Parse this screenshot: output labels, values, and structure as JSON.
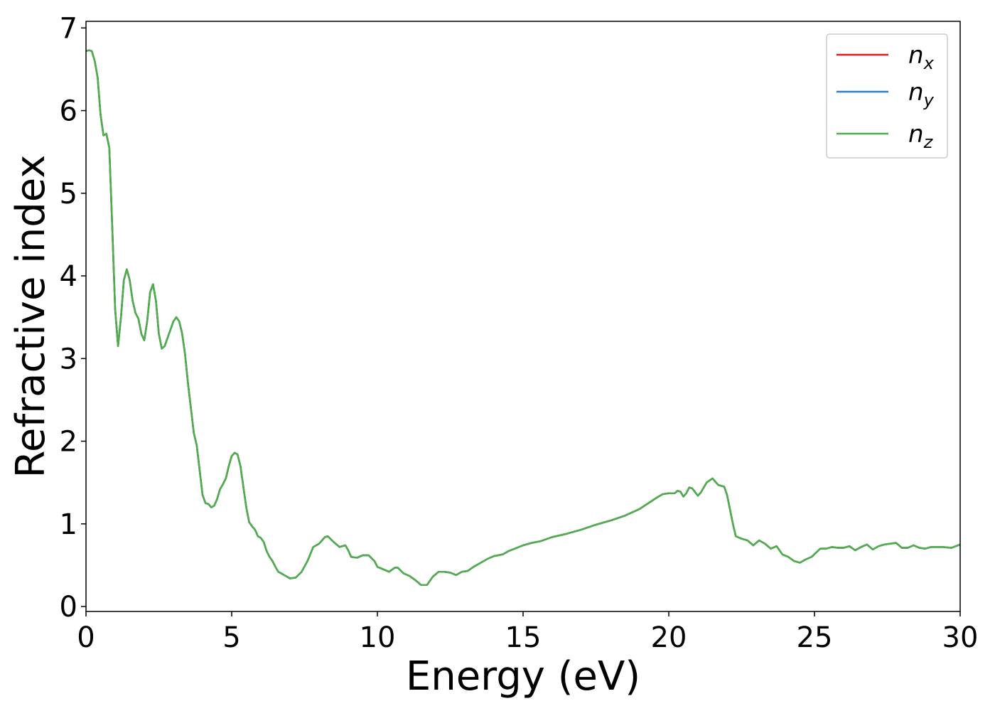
{
  "chart_data": {
    "type": "line",
    "xlabel": "Energy (eV)",
    "ylabel": "Refractive index",
    "x": [
      0,
      0.1,
      0.2,
      0.3,
      0.4,
      0.5,
      0.6,
      0.7,
      0.8,
      0.9,
      1.0,
      1.1,
      1.2,
      1.3,
      1.4,
      1.5,
      1.6,
      1.7,
      1.8,
      1.9,
      2.0,
      2.1,
      2.2,
      2.3,
      2.4,
      2.5,
      2.6,
      2.7,
      2.8,
      2.9,
      3.0,
      3.1,
      3.2,
      3.3,
      3.4,
      3.5,
      3.6,
      3.7,
      3.8,
      3.9,
      4.0,
      4.1,
      4.2,
      4.3,
      4.4,
      4.5,
      4.6,
      4.7,
      4.8,
      4.9,
      5.0,
      5.1,
      5.2,
      5.3,
      5.4,
      5.5,
      5.6,
      5.7,
      5.8,
      5.9,
      6.0,
      6.1,
      6.2,
      6.3,
      6.4,
      6.5,
      6.6,
      6.8,
      7.0,
      7.2,
      7.4,
      7.6,
      7.8,
      8.0,
      8.2,
      8.3,
      8.5,
      8.7,
      8.9,
      9.0,
      9.1,
      9.3,
      9.5,
      9.7,
      9.9,
      10.0,
      10.2,
      10.4,
      10.6,
      10.7,
      10.9,
      11.1,
      11.3,
      11.5,
      11.7,
      11.9,
      12.1,
      12.3,
      12.5,
      12.7,
      12.9,
      13.1,
      13.3,
      13.5,
      13.8,
      14.0,
      14.3,
      14.5,
      15.0,
      15.3,
      15.6,
      16.0,
      16.5,
      17.0,
      17.5,
      18.0,
      18.5,
      19.0,
      19.3,
      19.6,
      19.8,
      20.0,
      20.2,
      20.3,
      20.4,
      20.5,
      20.6,
      20.7,
      20.8,
      21.0,
      21.1,
      21.3,
      21.5,
      21.7,
      21.9,
      22.0,
      22.2,
      22.3,
      22.5,
      22.7,
      22.9,
      23.1,
      23.3,
      23.5,
      23.7,
      23.9,
      24.1,
      24.3,
      24.5,
      24.7,
      24.9,
      25.2,
      25.4,
      25.6,
      25.8,
      26.0,
      26.2,
      26.4,
      26.6,
      26.8,
      27.0,
      27.2,
      27.4,
      27.6,
      27.8,
      28.0,
      28.2,
      28.4,
      28.6,
      28.8,
      29.0,
      29.4,
      29.7,
      30.0
    ],
    "series": [
      {
        "name": "nx",
        "color": "#e41a1c",
        "values": [
          6.72,
          6.73,
          6.72,
          6.6,
          6.4,
          5.95,
          5.7,
          5.72,
          5.55,
          4.6,
          3.6,
          3.15,
          3.5,
          3.95,
          4.08,
          3.95,
          3.7,
          3.55,
          3.48,
          3.3,
          3.22,
          3.45,
          3.8,
          3.9,
          3.7,
          3.3,
          3.12,
          3.15,
          3.25,
          3.35,
          3.45,
          3.5,
          3.45,
          3.3,
          3.05,
          2.7,
          2.4,
          2.1,
          1.95,
          1.65,
          1.35,
          1.25,
          1.24,
          1.2,
          1.22,
          1.3,
          1.42,
          1.48,
          1.55,
          1.7,
          1.82,
          1.86,
          1.84,
          1.7,
          1.45,
          1.2,
          1.02,
          0.97,
          0.93,
          0.85,
          0.83,
          0.78,
          0.67,
          0.6,
          0.55,
          0.48,
          0.42,
          0.38,
          0.34,
          0.35,
          0.42,
          0.55,
          0.72,
          0.76,
          0.84,
          0.85,
          0.78,
          0.72,
          0.74,
          0.68,
          0.6,
          0.59,
          0.62,
          0.62,
          0.55,
          0.48,
          0.45,
          0.42,
          0.47,
          0.47,
          0.4,
          0.37,
          0.32,
          0.26,
          0.26,
          0.36,
          0.42,
          0.42,
          0.41,
          0.38,
          0.42,
          0.43,
          0.48,
          0.52,
          0.58,
          0.61,
          0.63,
          0.67,
          0.74,
          0.77,
          0.79,
          0.84,
          0.88,
          0.93,
          0.99,
          1.04,
          1.1,
          1.18,
          1.25,
          1.32,
          1.36,
          1.37,
          1.37,
          1.4,
          1.39,
          1.33,
          1.37,
          1.44,
          1.43,
          1.34,
          1.38,
          1.5,
          1.55,
          1.47,
          1.45,
          1.35,
          1.0,
          0.85,
          0.82,
          0.8,
          0.74,
          0.8,
          0.76,
          0.7,
          0.73,
          0.63,
          0.6,
          0.55,
          0.53,
          0.57,
          0.6,
          0.7,
          0.7,
          0.72,
          0.71,
          0.71,
          0.73,
          0.68,
          0.72,
          0.75,
          0.69,
          0.73,
          0.75,
          0.76,
          0.77,
          0.71,
          0.71,
          0.74,
          0.71,
          0.7,
          0.72,
          0.72,
          0.71,
          0.75
        ]
      },
      {
        "name": "ny",
        "color": "#377eb8",
        "values": [
          6.72,
          6.73,
          6.72,
          6.6,
          6.4,
          5.95,
          5.7,
          5.72,
          5.55,
          4.6,
          3.6,
          3.15,
          3.5,
          3.95,
          4.08,
          3.95,
          3.7,
          3.55,
          3.48,
          3.3,
          3.22,
          3.45,
          3.8,
          3.9,
          3.7,
          3.3,
          3.12,
          3.15,
          3.25,
          3.35,
          3.45,
          3.5,
          3.45,
          3.3,
          3.05,
          2.7,
          2.4,
          2.1,
          1.95,
          1.65,
          1.35,
          1.25,
          1.24,
          1.2,
          1.22,
          1.3,
          1.42,
          1.48,
          1.55,
          1.7,
          1.82,
          1.86,
          1.84,
          1.7,
          1.45,
          1.2,
          1.02,
          0.97,
          0.93,
          0.85,
          0.83,
          0.78,
          0.67,
          0.6,
          0.55,
          0.48,
          0.42,
          0.38,
          0.34,
          0.35,
          0.42,
          0.55,
          0.72,
          0.76,
          0.84,
          0.85,
          0.78,
          0.72,
          0.74,
          0.68,
          0.6,
          0.59,
          0.62,
          0.62,
          0.55,
          0.48,
          0.45,
          0.42,
          0.47,
          0.47,
          0.4,
          0.37,
          0.32,
          0.26,
          0.26,
          0.36,
          0.42,
          0.42,
          0.41,
          0.38,
          0.42,
          0.43,
          0.48,
          0.52,
          0.58,
          0.61,
          0.63,
          0.67,
          0.74,
          0.77,
          0.79,
          0.84,
          0.88,
          0.93,
          0.99,
          1.04,
          1.1,
          1.18,
          1.25,
          1.32,
          1.36,
          1.37,
          1.37,
          1.4,
          1.39,
          1.33,
          1.37,
          1.44,
          1.43,
          1.34,
          1.38,
          1.5,
          1.55,
          1.47,
          1.45,
          1.35,
          1.0,
          0.85,
          0.82,
          0.8,
          0.74,
          0.8,
          0.76,
          0.7,
          0.73,
          0.63,
          0.6,
          0.55,
          0.53,
          0.57,
          0.6,
          0.7,
          0.7,
          0.72,
          0.71,
          0.71,
          0.73,
          0.68,
          0.72,
          0.75,
          0.69,
          0.73,
          0.75,
          0.76,
          0.77,
          0.71,
          0.71,
          0.74,
          0.71,
          0.7,
          0.72,
          0.72,
          0.71,
          0.75
        ]
      },
      {
        "name": "nz",
        "color": "#4daf4a",
        "values": [
          6.72,
          6.73,
          6.72,
          6.6,
          6.4,
          5.95,
          5.7,
          5.72,
          5.55,
          4.6,
          3.6,
          3.15,
          3.5,
          3.95,
          4.08,
          3.95,
          3.7,
          3.55,
          3.48,
          3.3,
          3.22,
          3.45,
          3.8,
          3.9,
          3.7,
          3.3,
          3.12,
          3.15,
          3.25,
          3.35,
          3.45,
          3.5,
          3.45,
          3.3,
          3.05,
          2.7,
          2.4,
          2.1,
          1.95,
          1.65,
          1.35,
          1.25,
          1.24,
          1.2,
          1.22,
          1.3,
          1.42,
          1.48,
          1.55,
          1.7,
          1.82,
          1.86,
          1.84,
          1.7,
          1.45,
          1.2,
          1.02,
          0.97,
          0.93,
          0.85,
          0.83,
          0.78,
          0.67,
          0.6,
          0.55,
          0.48,
          0.42,
          0.38,
          0.34,
          0.35,
          0.42,
          0.55,
          0.72,
          0.76,
          0.84,
          0.85,
          0.78,
          0.72,
          0.74,
          0.68,
          0.6,
          0.59,
          0.62,
          0.62,
          0.55,
          0.48,
          0.45,
          0.42,
          0.47,
          0.47,
          0.4,
          0.37,
          0.32,
          0.26,
          0.26,
          0.36,
          0.42,
          0.42,
          0.41,
          0.38,
          0.42,
          0.43,
          0.48,
          0.52,
          0.58,
          0.61,
          0.63,
          0.67,
          0.74,
          0.77,
          0.79,
          0.84,
          0.88,
          0.93,
          0.99,
          1.04,
          1.1,
          1.18,
          1.25,
          1.32,
          1.36,
          1.37,
          1.37,
          1.4,
          1.39,
          1.33,
          1.37,
          1.44,
          1.43,
          1.34,
          1.38,
          1.5,
          1.55,
          1.47,
          1.45,
          1.35,
          1.0,
          0.85,
          0.82,
          0.8,
          0.74,
          0.8,
          0.76,
          0.7,
          0.73,
          0.63,
          0.6,
          0.55,
          0.53,
          0.57,
          0.6,
          0.7,
          0.7,
          0.72,
          0.71,
          0.71,
          0.73,
          0.68,
          0.72,
          0.75,
          0.69,
          0.73,
          0.75,
          0.76,
          0.77,
          0.71,
          0.71,
          0.74,
          0.71,
          0.7,
          0.72,
          0.72,
          0.71,
          0.75
        ]
      }
    ],
    "xlim": [
      0,
      30
    ],
    "xticks": [
      0,
      5,
      10,
      15,
      20,
      25,
      30
    ],
    "ylim": [
      -0.06,
      7.08
    ],
    "yticks": [
      0,
      1,
      2,
      3,
      4,
      5,
      6,
      7
    ],
    "grid": false,
    "legend": "upper right"
  }
}
